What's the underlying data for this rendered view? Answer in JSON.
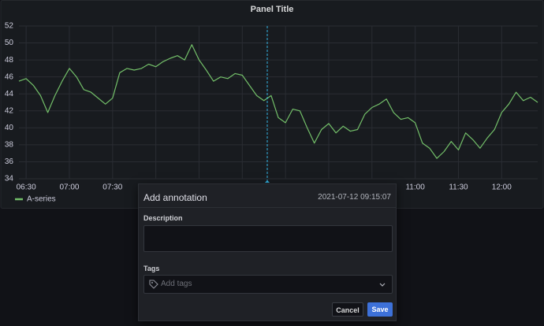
{
  "chart_data": {
    "type": "line",
    "title": "Panel Title",
    "categories": [
      null,
      "06:30",
      null,
      null,
      null,
      null,
      null,
      "07:00",
      null,
      null,
      null,
      null,
      null,
      "07:30",
      null,
      null,
      null,
      null,
      null,
      null,
      null,
      null,
      null,
      null,
      null,
      null,
      null,
      null,
      null,
      null,
      null,
      null,
      null,
      null,
      null,
      null,
      null,
      null,
      null,
      null,
      null,
      null,
      null,
      null,
      null,
      null,
      null,
      null,
      null,
      null,
      null,
      null,
      null,
      null,
      null,
      "11:00",
      null,
      null,
      null,
      null,
      null,
      "11:30",
      null,
      null,
      null,
      null,
      null,
      "12:00",
      null,
      null,
      null,
      null,
      null
    ],
    "series": [
      {
        "name": "A-series",
        "color": "#73bf69",
        "values": [
          45.5,
          45.8,
          45,
          43.8,
          41.8,
          43.8,
          45.5,
          47,
          46,
          44.5,
          44.2,
          43.5,
          42.8,
          43.5,
          46.5,
          47,
          46.8,
          47,
          47.5,
          47.2,
          47.8,
          48.2,
          48.5,
          48,
          49.8,
          48,
          46.8,
          45.5,
          46,
          45.8,
          46.4,
          46.2,
          45,
          43.8,
          43.2,
          43.8,
          41.2,
          40.6,
          42.2,
          42,
          40,
          38.2,
          39.8,
          40.5,
          39.4,
          40.2,
          39.6,
          39.8,
          41.6,
          42.4,
          42.8,
          43.4,
          41.8,
          41,
          41.2,
          40.6,
          38.2,
          37.6,
          36.4,
          37.2,
          38.4,
          37.4,
          39.4,
          38.6,
          37.6,
          38.8,
          39.8,
          41.8,
          42.8,
          44.2,
          43.2,
          43.6,
          43
        ]
      }
    ],
    "ylim": [
      34,
      52
    ],
    "yticks": [
      34,
      36,
      38,
      40,
      42,
      44,
      46,
      48,
      50,
      52
    ],
    "grid": true
  },
  "annotation_dialog": {
    "title": "Add annotation",
    "timestamp": "2021-07-12 09:15:07",
    "description_label": "Description",
    "tags_label": "Tags",
    "tags_placeholder": "Add tags",
    "cancel_button": "Cancel",
    "save_button": "Save"
  }
}
